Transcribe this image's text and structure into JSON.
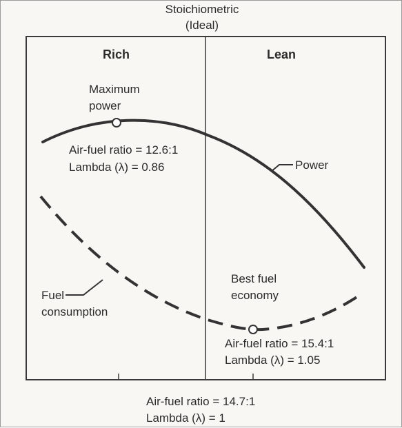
{
  "header": {
    "line1": "Stoichiometric",
    "line2": "(Ideal)"
  },
  "regions": {
    "left": "Rich",
    "right": "Lean"
  },
  "curves": {
    "power": {
      "label": "Power",
      "style": "solid"
    },
    "fuel": {
      "label_line1": "Fuel",
      "label_line2": "consumption",
      "style": "dashed"
    }
  },
  "annotations": {
    "max_power": {
      "title_line1": "Maximum",
      "title_line2": "power",
      "afr": "Air-fuel ratio = 12.6:1",
      "lambda": "Lambda (λ) = 0.86"
    },
    "best_economy": {
      "title_line1": "Best fuel",
      "title_line2": "economy",
      "afr": "Air-fuel ratio = 15.4:1",
      "lambda": "Lambda (λ) = 1.05"
    },
    "stoich": {
      "afr": "Air-fuel ratio = 14.7:1",
      "lambda": "Lambda (λ) = 1"
    }
  },
  "colors": {
    "curve": "#333333",
    "frame": "#3a3a3a",
    "marker_fill": "#ffffff"
  }
}
